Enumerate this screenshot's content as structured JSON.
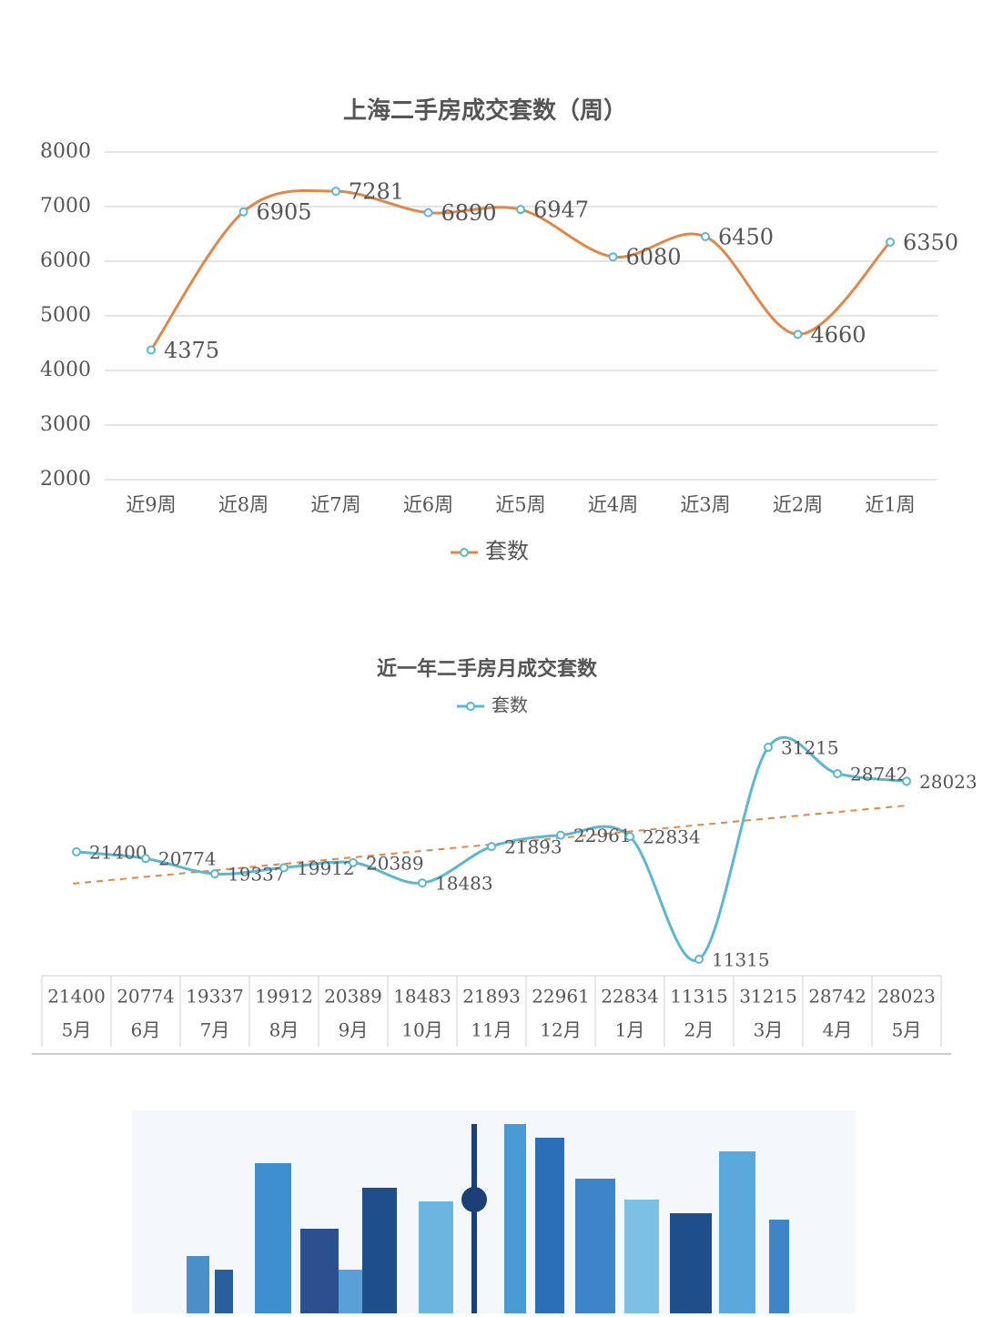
{
  "chart_data": [
    {
      "type": "line",
      "title": "上海二手房成交套数（周）",
      "categories": [
        "近9周",
        "近8周",
        "近7周",
        "近6周",
        "近5周",
        "近4周",
        "近3周",
        "近2周",
        "近1周"
      ],
      "series": [
        {
          "name": "套数",
          "color": "#e0874a",
          "marker_color": "#5bb8d0",
          "values": [
            4375,
            6905,
            7281,
            6890,
            6947,
            6080,
            6450,
            4660,
            6350
          ]
        }
      ],
      "ylim": [
        2000,
        8000
      ],
      "yticks": [
        2000,
        3000,
        4000,
        5000,
        6000,
        7000,
        8000
      ],
      "grid": true,
      "smooth": true,
      "data_labels": true,
      "legend": "bottom"
    },
    {
      "type": "line",
      "title": "近一年二手房月成交套数",
      "categories": [
        "5月",
        "6月",
        "7月",
        "8月",
        "9月",
        "10月",
        "11月",
        "12月",
        "1月",
        "2月",
        "3月",
        "4月",
        "5月"
      ],
      "series": [
        {
          "name": "套数",
          "color": "#5bb8d0",
          "marker_color": "#5bb8d0",
          "values": [
            21400,
            20774,
            19337,
            19912,
            20389,
            18483,
            21893,
            22961,
            22834,
            11315,
            31215,
            28742,
            28023
          ]
        }
      ],
      "trendline": "linear",
      "trendline_color": "#e0874a",
      "smooth": true,
      "data_labels": true,
      "data_table": true,
      "legend": "top"
    }
  ]
}
